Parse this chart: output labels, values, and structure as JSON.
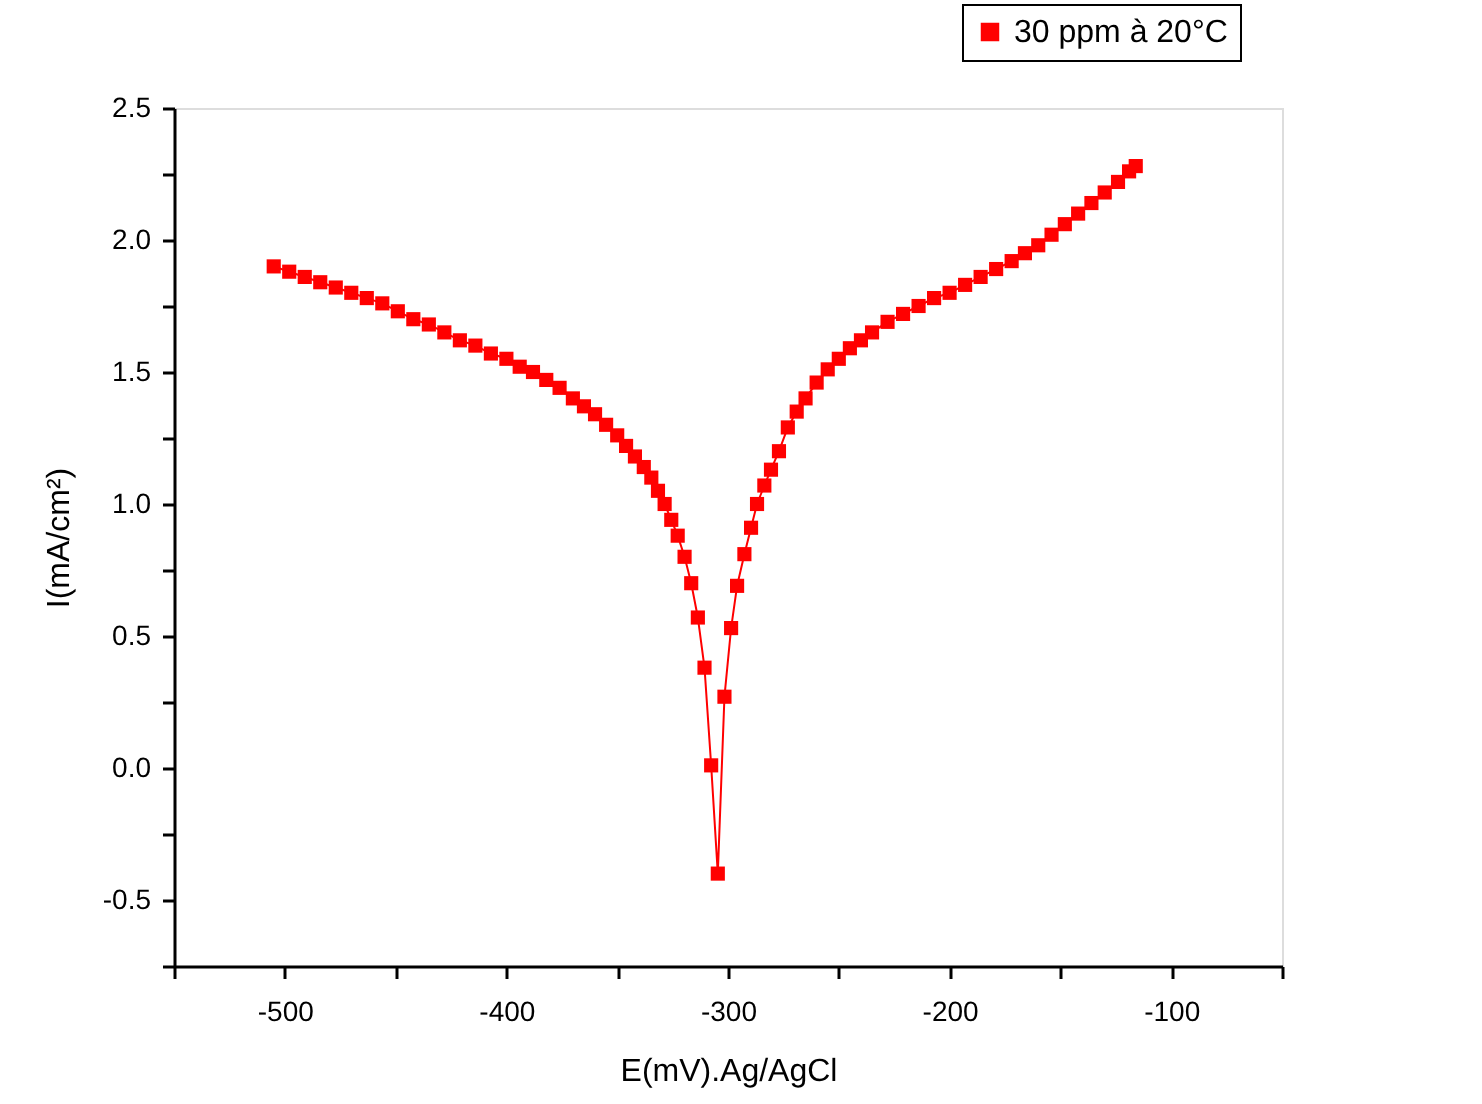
{
  "chart_data": {
    "type": "line",
    "xlabel": "E(mV).Ag/AgCl",
    "ylabel": "I(mA/cm²)",
    "xlim": [
      -550,
      -50
    ],
    "xticks": [
      {
        "value": -550,
        "label": null
      },
      -500,
      {
        "value": -450,
        "label": null
      },
      -400,
      {
        "value": -350,
        "label": null
      },
      -300,
      {
        "value": -250,
        "label": null
      },
      -200,
      {
        "value": -150,
        "label": null
      },
      -100,
      {
        "value": -50,
        "label": null
      }
    ],
    "ylim": [
      -0.75,
      2.5
    ],
    "yticks": [
      {
        "value": -0.75,
        "label": null
      },
      -0.5,
      {
        "value": -0.25,
        "label": null
      },
      {
        "value": 0,
        "label": "0.0"
      },
      {
        "value": 0.25,
        "label": null
      },
      0.5,
      {
        "value": 0.75,
        "label": null
      },
      {
        "value": 1,
        "label": "1.0"
      },
      {
        "value": 1.25,
        "label": null
      },
      1.5,
      {
        "value": 1.75,
        "label": null
      },
      {
        "value": 2,
        "label": "2.0"
      },
      {
        "value": 2.25,
        "label": null
      },
      2.5
    ],
    "grid": false,
    "legend": "top right",
    "marker": "square",
    "line_style": "solid",
    "x": [
      -505,
      -498,
      -491,
      -484,
      -477,
      -470,
      -463,
      -456,
      -449,
      -442,
      -435,
      -428,
      -421,
      -414,
      -407,
      -400,
      -394,
      -388,
      -382,
      -376,
      -370,
      -365,
      -360,
      -355,
      -350,
      -346,
      -342,
      -338,
      -334.6,
      -331.6,
      -328.6,
      -325.6,
      -322.7,
      -319.6,
      -316.6,
      -313.6,
      -310.6,
      -307.6,
      -304.6,
      -301.6,
      -298.6,
      -295.9,
      -292.6,
      -289.6,
      -286.9,
      -283.6,
      -280.6,
      -277,
      -273,
      -269,
      -265,
      -260,
      -255,
      -250,
      -245,
      -240,
      -235,
      -228,
      -221,
      -214,
      -207,
      -200,
      -193,
      -186,
      -179,
      -172,
      -166,
      -160,
      -154,
      -148,
      -142,
      -136,
      -130,
      -124,
      -119,
      -116
    ],
    "series": [
      {
        "name": "30 ppm à 20°C",
        "color": "#ff0000",
        "values": [
          1.9,
          1.88,
          1.86,
          1.84,
          1.82,
          1.8,
          1.78,
          1.76,
          1.73,
          1.7,
          1.68,
          1.65,
          1.62,
          1.6,
          1.57,
          1.55,
          1.52,
          1.5,
          1.47,
          1.44,
          1.4,
          1.37,
          1.34,
          1.3,
          1.26,
          1.22,
          1.18,
          1.14,
          1.1,
          1.05,
          1.0,
          0.94,
          0.88,
          0.8,
          0.7,
          0.57,
          0.38,
          0.01,
          -0.4,
          0.27,
          0.53,
          0.69,
          0.81,
          0.91,
          1.0,
          1.07,
          1.13,
          1.2,
          1.29,
          1.35,
          1.4,
          1.46,
          1.51,
          1.55,
          1.59,
          1.62,
          1.65,
          1.69,
          1.72,
          1.75,
          1.78,
          1.8,
          1.83,
          1.86,
          1.89,
          1.92,
          1.95,
          1.98,
          2.02,
          2.06,
          2.1,
          2.14,
          2.18,
          2.22,
          2.26,
          2.28
        ]
      }
    ]
  }
}
